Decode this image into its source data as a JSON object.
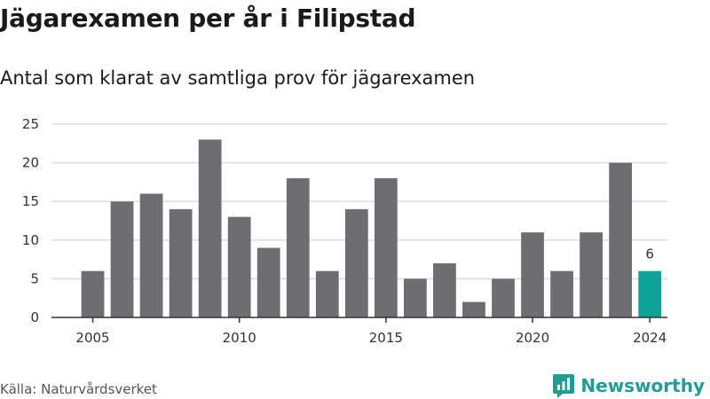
{
  "title": "Jägarexamen per år i Filipstad",
  "subtitle": "Antal som klarat av samtliga prov för jägarexamen",
  "source": "Källa: Naturvårdsverket",
  "brand": {
    "name": "Newsworthy",
    "icon": "newsworthy-logo-icon",
    "color": "#1e9e95"
  },
  "chart_data": {
    "type": "bar",
    "title": "Jägarexamen per år i Filipstad",
    "subtitle": "Antal som klarat av samtliga prov för jägarexamen",
    "xlabel": "",
    "ylabel": "",
    "categories": [
      2005,
      2006,
      2007,
      2008,
      2009,
      2010,
      2011,
      2012,
      2013,
      2014,
      2015,
      2016,
      2017,
      2018,
      2019,
      2020,
      2021,
      2022,
      2023,
      2024
    ],
    "values": [
      6,
      15,
      16,
      14,
      23,
      13,
      9,
      18,
      6,
      14,
      18,
      5,
      7,
      2,
      5,
      11,
      6,
      11,
      20,
      6
    ],
    "xticks": [
      "2005",
      "2010",
      "2015",
      "2020",
      "2024"
    ],
    "yticks": [
      0,
      5,
      10,
      15,
      20,
      25
    ],
    "ylim": [
      0,
      25
    ],
    "grid": "horizontal",
    "bar_color": "#6e6d72",
    "highlight_color": "#0fa398",
    "highlight_category": 2024,
    "highlight_label": "6"
  }
}
